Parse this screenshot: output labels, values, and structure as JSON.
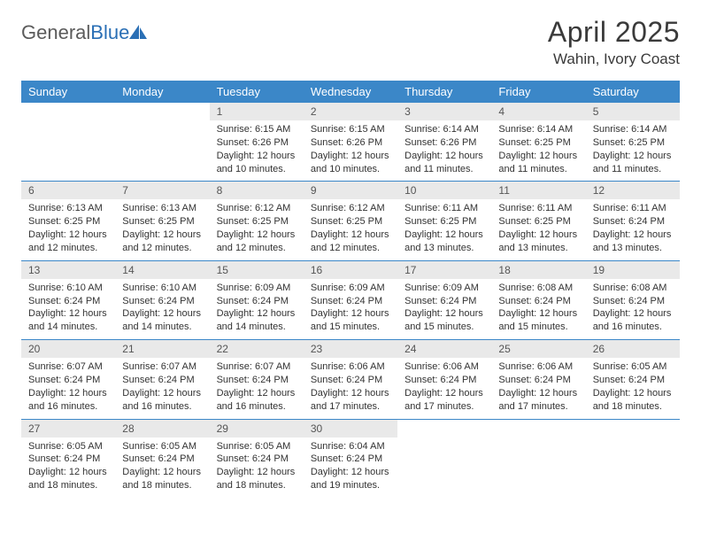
{
  "brand": {
    "part1": "General",
    "part2": "Blue"
  },
  "title": "April 2025",
  "location": "Wahin, Ivory Coast",
  "colors": {
    "header_bg": "#3b87c8",
    "header_fg": "#ffffff",
    "daynum_bg": "#e9e9e9",
    "rule": "#3b87c8",
    "logo_gray": "#5b5b5b",
    "logo_blue": "#2a6fb5",
    "text": "#333333"
  },
  "weekdays": [
    "Sunday",
    "Monday",
    "Tuesday",
    "Wednesday",
    "Thursday",
    "Friday",
    "Saturday"
  ],
  "weeks": [
    [
      null,
      null,
      {
        "n": 1,
        "sunrise": "6:15 AM",
        "sunset": "6:26 PM",
        "dl": "12 hours and 10 minutes."
      },
      {
        "n": 2,
        "sunrise": "6:15 AM",
        "sunset": "6:26 PM",
        "dl": "12 hours and 10 minutes."
      },
      {
        "n": 3,
        "sunrise": "6:14 AM",
        "sunset": "6:26 PM",
        "dl": "12 hours and 11 minutes."
      },
      {
        "n": 4,
        "sunrise": "6:14 AM",
        "sunset": "6:25 PM",
        "dl": "12 hours and 11 minutes."
      },
      {
        "n": 5,
        "sunrise": "6:14 AM",
        "sunset": "6:25 PM",
        "dl": "12 hours and 11 minutes."
      }
    ],
    [
      {
        "n": 6,
        "sunrise": "6:13 AM",
        "sunset": "6:25 PM",
        "dl": "12 hours and 12 minutes."
      },
      {
        "n": 7,
        "sunrise": "6:13 AM",
        "sunset": "6:25 PM",
        "dl": "12 hours and 12 minutes."
      },
      {
        "n": 8,
        "sunrise": "6:12 AM",
        "sunset": "6:25 PM",
        "dl": "12 hours and 12 minutes."
      },
      {
        "n": 9,
        "sunrise": "6:12 AM",
        "sunset": "6:25 PM",
        "dl": "12 hours and 12 minutes."
      },
      {
        "n": 10,
        "sunrise": "6:11 AM",
        "sunset": "6:25 PM",
        "dl": "12 hours and 13 minutes."
      },
      {
        "n": 11,
        "sunrise": "6:11 AM",
        "sunset": "6:25 PM",
        "dl": "12 hours and 13 minutes."
      },
      {
        "n": 12,
        "sunrise": "6:11 AM",
        "sunset": "6:24 PM",
        "dl": "12 hours and 13 minutes."
      }
    ],
    [
      {
        "n": 13,
        "sunrise": "6:10 AM",
        "sunset": "6:24 PM",
        "dl": "12 hours and 14 minutes."
      },
      {
        "n": 14,
        "sunrise": "6:10 AM",
        "sunset": "6:24 PM",
        "dl": "12 hours and 14 minutes."
      },
      {
        "n": 15,
        "sunrise": "6:09 AM",
        "sunset": "6:24 PM",
        "dl": "12 hours and 14 minutes."
      },
      {
        "n": 16,
        "sunrise": "6:09 AM",
        "sunset": "6:24 PM",
        "dl": "12 hours and 15 minutes."
      },
      {
        "n": 17,
        "sunrise": "6:09 AM",
        "sunset": "6:24 PM",
        "dl": "12 hours and 15 minutes."
      },
      {
        "n": 18,
        "sunrise": "6:08 AM",
        "sunset": "6:24 PM",
        "dl": "12 hours and 15 minutes."
      },
      {
        "n": 19,
        "sunrise": "6:08 AM",
        "sunset": "6:24 PM",
        "dl": "12 hours and 16 minutes."
      }
    ],
    [
      {
        "n": 20,
        "sunrise": "6:07 AM",
        "sunset": "6:24 PM",
        "dl": "12 hours and 16 minutes."
      },
      {
        "n": 21,
        "sunrise": "6:07 AM",
        "sunset": "6:24 PM",
        "dl": "12 hours and 16 minutes."
      },
      {
        "n": 22,
        "sunrise": "6:07 AM",
        "sunset": "6:24 PM",
        "dl": "12 hours and 16 minutes."
      },
      {
        "n": 23,
        "sunrise": "6:06 AM",
        "sunset": "6:24 PM",
        "dl": "12 hours and 17 minutes."
      },
      {
        "n": 24,
        "sunrise": "6:06 AM",
        "sunset": "6:24 PM",
        "dl": "12 hours and 17 minutes."
      },
      {
        "n": 25,
        "sunrise": "6:06 AM",
        "sunset": "6:24 PM",
        "dl": "12 hours and 17 minutes."
      },
      {
        "n": 26,
        "sunrise": "6:05 AM",
        "sunset": "6:24 PM",
        "dl": "12 hours and 18 minutes."
      }
    ],
    [
      {
        "n": 27,
        "sunrise": "6:05 AM",
        "sunset": "6:24 PM",
        "dl": "12 hours and 18 minutes."
      },
      {
        "n": 28,
        "sunrise": "6:05 AM",
        "sunset": "6:24 PM",
        "dl": "12 hours and 18 minutes."
      },
      {
        "n": 29,
        "sunrise": "6:05 AM",
        "sunset": "6:24 PM",
        "dl": "12 hours and 18 minutes."
      },
      {
        "n": 30,
        "sunrise": "6:04 AM",
        "sunset": "6:24 PM",
        "dl": "12 hours and 19 minutes."
      },
      null,
      null,
      null
    ]
  ],
  "labels": {
    "sunrise": "Sunrise:",
    "sunset": "Sunset:",
    "daylight": "Daylight:"
  }
}
